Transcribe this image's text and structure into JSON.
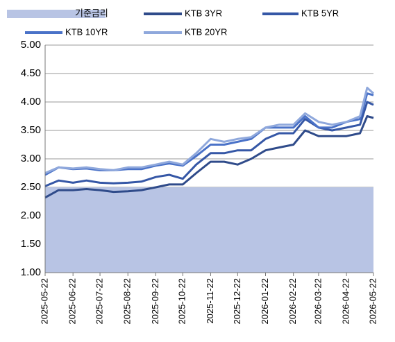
{
  "chart_data": {
    "type": "line",
    "x": [
      "2025-05-22",
      "2025-06-06",
      "2025-06-22",
      "2025-07-07",
      "2025-07-22",
      "2025-08-06",
      "2025-08-22",
      "2025-09-06",
      "2025-09-22",
      "2025-10-07",
      "2025-10-22",
      "2025-11-06",
      "2025-11-22",
      "2025-12-07",
      "2025-12-22",
      "2026-01-06",
      "2026-01-22",
      "2026-02-06",
      "2026-02-22",
      "2026-03-07",
      "2026-03-22",
      "2026-04-06",
      "2026-04-22",
      "2026-05-07",
      "2026-05-15",
      "2026-05-22"
    ],
    "series": [
      {
        "name": "기준금리",
        "color": "#b8c4e4",
        "style": "area",
        "values": [
          2.5,
          2.5,
          2.5,
          2.5,
          2.5,
          2.5,
          2.5,
          2.5,
          2.5,
          2.5,
          2.5,
          2.5,
          2.5,
          2.5,
          2.5,
          2.5,
          2.5,
          2.5,
          2.5,
          2.5,
          2.5,
          2.5,
          2.5,
          2.5,
          2.5,
          2.5
        ]
      },
      {
        "name": "KTB 3YR",
        "color": "#2f4b8a",
        "style": "line",
        "values": [
          2.32,
          2.45,
          2.45,
          2.47,
          2.45,
          2.42,
          2.43,
          2.45,
          2.5,
          2.55,
          2.55,
          2.75,
          2.95,
          2.95,
          2.9,
          3.0,
          3.15,
          3.2,
          3.25,
          3.5,
          3.4,
          3.4,
          3.4,
          3.45,
          3.75,
          3.72
        ]
      },
      {
        "name": "KTB 5YR",
        "color": "#3557a6",
        "style": "line",
        "values": [
          2.52,
          2.62,
          2.58,
          2.62,
          2.58,
          2.57,
          2.58,
          2.6,
          2.68,
          2.72,
          2.65,
          2.9,
          3.1,
          3.1,
          3.15,
          3.15,
          3.35,
          3.45,
          3.45,
          3.7,
          3.55,
          3.5,
          3.55,
          3.6,
          4.0,
          3.95
        ]
      },
      {
        "name": "KTB 10YR",
        "color": "#4a72c8",
        "style": "line",
        "values": [
          2.72,
          2.85,
          2.82,
          2.83,
          2.8,
          2.8,
          2.82,
          2.82,
          2.88,
          2.92,
          2.88,
          3.05,
          3.25,
          3.25,
          3.3,
          3.35,
          3.55,
          3.55,
          3.55,
          3.75,
          3.55,
          3.55,
          3.65,
          3.7,
          4.15,
          4.12
        ]
      },
      {
        "name": "KTB 20YR",
        "color": "#8fa8dc",
        "style": "line",
        "values": [
          2.75,
          2.85,
          2.83,
          2.85,
          2.82,
          2.8,
          2.85,
          2.85,
          2.9,
          2.95,
          2.9,
          3.1,
          3.35,
          3.3,
          3.35,
          3.38,
          3.55,
          3.6,
          3.6,
          3.8,
          3.65,
          3.6,
          3.65,
          3.75,
          4.25,
          4.15
        ]
      }
    ],
    "xlim": [
      "2025-05-22",
      "2026-05-22"
    ],
    "xticks": [
      "2025-05-22",
      "2025-06-22",
      "2025-07-22",
      "2025-08-22",
      "2025-09-22",
      "2025-10-22",
      "2025-11-22",
      "2025-12-22",
      "2026-01-22",
      "2026-02-22",
      "2026-03-22",
      "2026-04-22",
      "2026-05-22"
    ],
    "ylim": [
      1,
      5
    ],
    "yticks": [
      {
        "value": 1,
        "label": "1.00"
      },
      {
        "value": 1.5,
        "label": "1.50"
      },
      {
        "value": 2,
        "label": "2.00"
      },
      {
        "value": 2.5,
        "label": "2.50"
      },
      {
        "value": 3,
        "label": "3.00"
      },
      {
        "value": 3.5,
        "label": "3.50"
      },
      {
        "value": 4,
        "label": "4.00"
      },
      {
        "value": 4.5,
        "label": "4.50"
      },
      {
        "value": 5,
        "label": "5.00"
      }
    ],
    "grid": true
  }
}
